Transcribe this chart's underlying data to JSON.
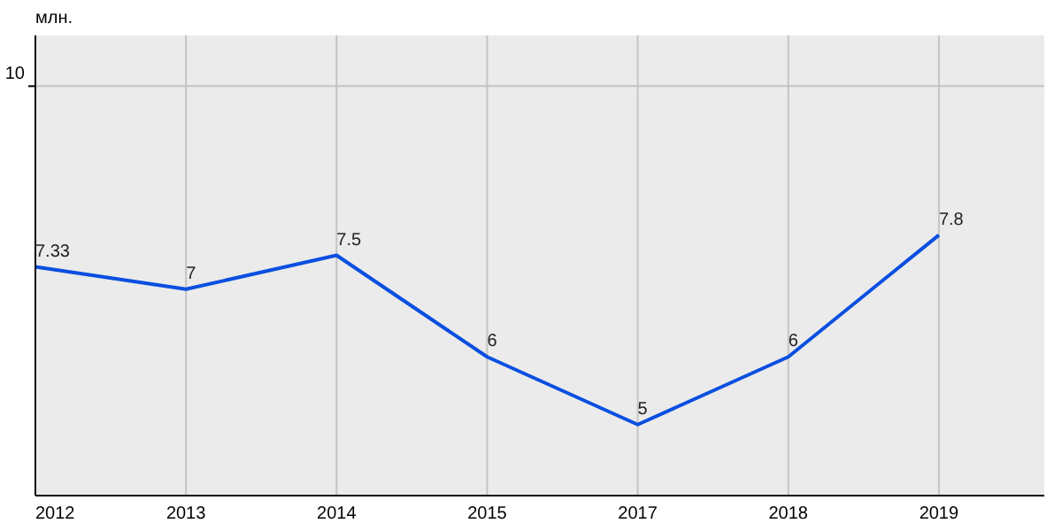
{
  "chart_data": {
    "type": "line",
    "annotations": [
      "млн."
    ],
    "categories": [
      "2012",
      "2013",
      "2014",
      "2015",
      "2017",
      "2018",
      "2019"
    ],
    "series": [
      {
        "color": "#0a4fe0",
        "values": [
          7.33,
          7,
          7.5,
          6,
          5,
          6,
          7.8
        ]
      }
    ],
    "ylim": [
      3.95,
      10.75
    ],
    "ref_lines": [
      {
        "axis": "y",
        "value": 10,
        "label": "10",
        "color": "#c4c4c4"
      }
    ],
    "grid": "x",
    "data_labels": true,
    "marker": "none",
    "line_style": "solid"
  }
}
